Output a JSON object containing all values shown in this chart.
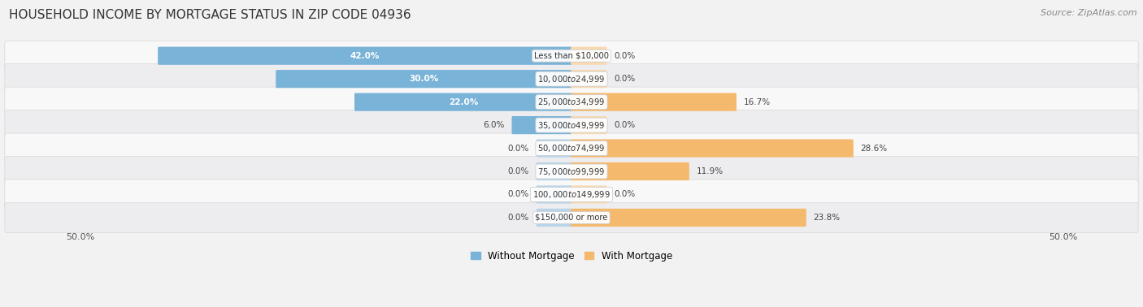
{
  "title": "HOUSEHOLD INCOME BY MORTGAGE STATUS IN ZIP CODE 04936",
  "source": "Source: ZipAtlas.com",
  "categories": [
    "Less than $10,000",
    "$10,000 to $24,999",
    "$25,000 to $34,999",
    "$35,000 to $49,999",
    "$50,000 to $74,999",
    "$75,000 to $99,999",
    "$100,000 to $149,999",
    "$150,000 or more"
  ],
  "without_mortgage": [
    42.0,
    30.0,
    22.0,
    6.0,
    0.0,
    0.0,
    0.0,
    0.0
  ],
  "with_mortgage": [
    0.0,
    0.0,
    16.7,
    0.0,
    28.6,
    11.9,
    0.0,
    23.8
  ],
  "color_without": "#7ab3d8",
  "color_with": "#f5b96e",
  "color_without_zero": "#b8d4ea",
  "color_with_zero": "#fad9b0",
  "axis_limit": 50.0,
  "bg_color": "#f2f2f2",
  "row_colors": [
    "#f8f8f8",
    "#ededef"
  ],
  "zero_stub": 3.5,
  "label_inside_threshold": 8.0
}
